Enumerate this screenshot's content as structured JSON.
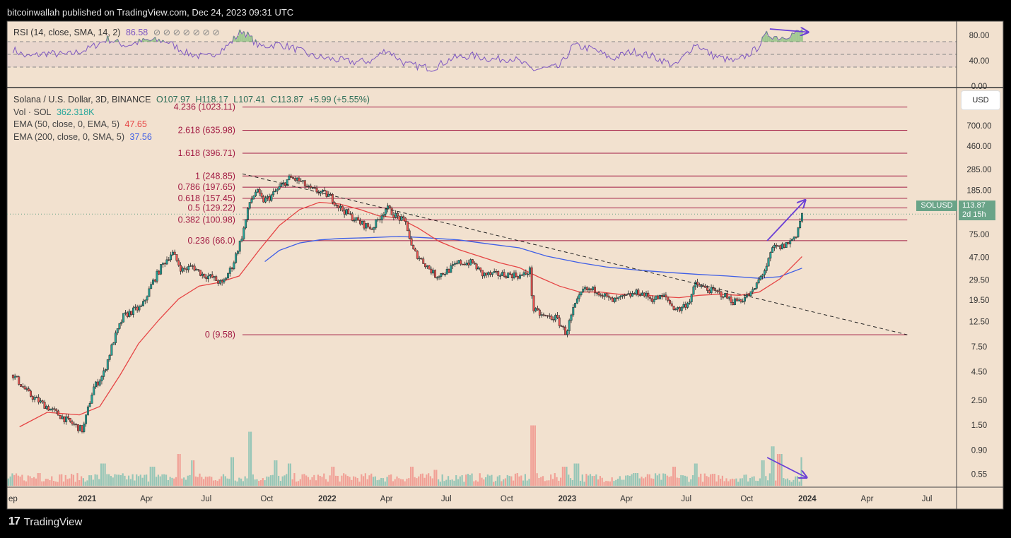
{
  "header": {
    "published": "bitcoinwallah published on TradingView.com, Dec 24, 2023 09:31 UTC"
  },
  "footer": {
    "brand": "TradingView",
    "logo_glyph": "17"
  },
  "rsi_panel": {
    "label": "RSI (14, close, SMA, 14, 2)",
    "value": "86.58",
    "ticks": [
      "80.00",
      "40.00",
      "0.00"
    ]
  },
  "legend": {
    "symbol_line": "Solana / U.S. Dollar, 3D, BINANCE",
    "ohlc": {
      "o": "O107.97",
      "h": "H118.17",
      "l": "L107.41",
      "c": "C113.87",
      "chg": "+5.99 (+5.55%)"
    },
    "vol_label": "Vol · SOL",
    "vol_value": "362.318K",
    "ema50_label": "EMA (50, close, 0, EMA, 5)",
    "ema50_value": "47.65",
    "ema200_label": "EMA (200, close, 0, SMA, 5)",
    "ema200_value": "37.56"
  },
  "currency_button": "USD",
  "price_tag": {
    "symbol": "SOLUSD",
    "price": "113.87",
    "countdown": "2d 15h"
  },
  "colors": {
    "background": "#f2e1cf",
    "up": "#26a69a",
    "down": "#ef5350",
    "fib": "#a31c44",
    "ema50": "#e64545",
    "ema200": "#3e5ee6",
    "rsi": "#7e57c2",
    "annotation_arrow": "#6a3fd6"
  },
  "chart_data": {
    "type": "candlestick",
    "scale": "log",
    "x_ticks": [
      "ep",
      "2021",
      "Apr",
      "Jul",
      "Oct",
      "2022",
      "Apr",
      "Jul",
      "Oct",
      "2023",
      "Apr",
      "Jul",
      "Oct",
      "2024",
      "Apr",
      "Jul"
    ],
    "x_tick_dates": [
      "2020-09-10",
      "2021-01-01",
      "2021-04-01",
      "2021-07-01",
      "2021-10-01",
      "2022-01-01",
      "2022-04-01",
      "2022-07-01",
      "2022-10-01",
      "2023-01-01",
      "2023-04-01",
      "2023-07-01",
      "2023-10-01",
      "2024-01-01",
      "2024-04-01",
      "2024-07-01"
    ],
    "y_ticks": [
      700.0,
      460.0,
      285.0,
      185.0,
      75.0,
      47.0,
      29.5,
      19.5,
      12.5,
      7.5,
      4.5,
      2.5,
      1.5,
      0.9,
      0.55
    ],
    "y_tick_labels": [
      "700.00",
      "460.00",
      "285.00",
      "185.00",
      "75.00",
      "47.00",
      "29.50",
      "19.50",
      "12.50",
      "7.50",
      "4.50",
      "2.50",
      "1.50",
      "0.90",
      "0.55"
    ],
    "fib_levels": [
      {
        "label": "4.236 (1023.11)",
        "value": 1023.11
      },
      {
        "label": "2.618 (635.98)",
        "value": 635.98
      },
      {
        "label": "1.618 (396.71)",
        "value": 396.71
      },
      {
        "label": "1 (248.85)",
        "value": 248.85
      },
      {
        "label": "0.786 (197.65)",
        "value": 197.65
      },
      {
        "label": "0.618 (157.45)",
        "value": 157.45
      },
      {
        "label": "0.5 (129.22)",
        "value": 129.22
      },
      {
        "label": "0.382 (100.98)",
        "value": 100.98
      },
      {
        "label": "0.236 (66.0)",
        "value": 66.0
      },
      {
        "label": "0 (9.58)",
        "value": 9.58
      }
    ],
    "fib_range": [
      "2021-08-25",
      "2024-06-01"
    ],
    "price_path": [
      [
        "2020-09-10",
        4.2
      ],
      [
        "2020-10-05",
        2.8
      ],
      [
        "2020-11-05",
        2.1
      ],
      [
        "2020-12-05",
        1.6
      ],
      [
        "2020-12-25",
        1.35
      ],
      [
        "2021-01-10",
        3.2
      ],
      [
        "2021-01-25",
        4.2
      ],
      [
        "2021-02-10",
        8.5
      ],
      [
        "2021-02-25",
        14
      ],
      [
        "2021-03-10",
        15.5
      ],
      [
        "2021-03-25",
        17
      ],
      [
        "2021-04-10",
        28
      ],
      [
        "2021-04-25",
        40
      ],
      [
        "2021-05-10",
        52
      ],
      [
        "2021-05-25",
        36
      ],
      [
        "2021-06-10",
        39
      ],
      [
        "2021-06-25",
        33
      ],
      [
        "2021-07-10",
        31
      ],
      [
        "2021-07-25",
        27
      ],
      [
        "2021-08-10",
        40
      ],
      [
        "2021-08-25",
        75
      ],
      [
        "2021-09-05",
        145
      ],
      [
        "2021-09-15",
        185
      ],
      [
        "2021-09-25",
        150
      ],
      [
        "2021-10-05",
        160
      ],
      [
        "2021-10-20",
        195
      ],
      [
        "2021-11-05",
        240
      ],
      [
        "2021-11-20",
        225
      ],
      [
        "2021-12-05",
        190
      ],
      [
        "2021-12-20",
        180
      ],
      [
        "2022-01-05",
        165
      ],
      [
        "2022-01-20",
        130
      ],
      [
        "2022-02-05",
        110
      ],
      [
        "2022-02-20",
        95
      ],
      [
        "2022-03-10",
        85
      ],
      [
        "2022-04-01",
        130
      ],
      [
        "2022-04-15",
        110
      ],
      [
        "2022-05-01",
        95
      ],
      [
        "2022-05-10",
        55
      ],
      [
        "2022-05-25",
        44
      ],
      [
        "2022-06-15",
        32
      ],
      [
        "2022-07-01",
        35
      ],
      [
        "2022-07-20",
        42
      ],
      [
        "2022-08-10",
        42
      ],
      [
        "2022-08-25",
        33
      ],
      [
        "2022-09-15",
        33
      ],
      [
        "2022-10-05",
        33
      ],
      [
        "2022-10-25",
        32
      ],
      [
        "2022-11-05",
        36
      ],
      [
        "2022-11-10",
        16
      ],
      [
        "2022-11-25",
        14
      ],
      [
        "2022-12-15",
        13.5
      ],
      [
        "2022-12-30",
        9.9
      ],
      [
        "2023-01-10",
        16
      ],
      [
        "2023-01-25",
        24
      ],
      [
        "2023-02-15",
        24
      ],
      [
        "2023-03-10",
        19
      ],
      [
        "2023-04-01",
        21
      ],
      [
        "2023-04-20",
        23
      ],
      [
        "2023-05-10",
        20
      ],
      [
        "2023-05-30",
        21
      ],
      [
        "2023-06-10",
        17
      ],
      [
        "2023-06-20",
        16
      ],
      [
        "2023-07-05",
        19
      ],
      [
        "2023-07-15",
        27
      ],
      [
        "2023-08-05",
        24
      ],
      [
        "2023-08-25",
        22
      ],
      [
        "2023-09-10",
        19
      ],
      [
        "2023-09-25",
        20
      ],
      [
        "2023-10-10",
        23
      ],
      [
        "2023-10-20",
        30
      ],
      [
        "2023-11-01",
        40
      ],
      [
        "2023-11-10",
        58
      ],
      [
        "2023-11-20",
        57
      ],
      [
        "2023-12-05",
        64
      ],
      [
        "2023-12-15",
        75
      ],
      [
        "2023-12-24",
        113.87
      ]
    ],
    "ema50": [
      [
        "2020-09-20",
        1.45
      ],
      [
        "2020-11-01",
        1.95
      ],
      [
        "2020-12-20",
        1.85
      ],
      [
        "2021-01-20",
        2.2
      ],
      [
        "2021-02-20",
        4.2
      ],
      [
        "2021-03-20",
        8
      ],
      [
        "2021-04-20",
        13
      ],
      [
        "2021-05-20",
        20
      ],
      [
        "2021-06-20",
        26
      ],
      [
        "2021-07-20",
        28
      ],
      [
        "2021-08-20",
        32
      ],
      [
        "2021-09-20",
        55
      ],
      [
        "2021-10-20",
        90
      ],
      [
        "2021-11-20",
        125
      ],
      [
        "2021-12-20",
        145
      ],
      [
        "2022-01-20",
        140
      ],
      [
        "2022-02-20",
        125
      ],
      [
        "2022-03-20",
        110
      ],
      [
        "2022-04-20",
        105
      ],
      [
        "2022-05-20",
        85
      ],
      [
        "2022-06-20",
        65
      ],
      [
        "2022-07-20",
        55
      ],
      [
        "2022-08-20",
        48
      ],
      [
        "2022-09-20",
        42
      ],
      [
        "2022-10-20",
        38
      ],
      [
        "2022-11-20",
        31
      ],
      [
        "2022-12-20",
        26
      ],
      [
        "2023-01-20",
        23
      ],
      [
        "2023-02-20",
        23
      ],
      [
        "2023-03-20",
        22
      ],
      [
        "2023-04-20",
        22
      ],
      [
        "2023-05-20",
        21
      ],
      [
        "2023-06-20",
        20.5
      ],
      [
        "2023-07-20",
        21.5
      ],
      [
        "2023-08-20",
        22
      ],
      [
        "2023-09-20",
        21.5
      ],
      [
        "2023-10-20",
        23
      ],
      [
        "2023-11-20",
        30
      ],
      [
        "2023-12-24",
        47.65
      ]
    ],
    "ema200": [
      [
        "2021-09-28",
        43
      ],
      [
        "2021-10-20",
        54
      ],
      [
        "2021-11-20",
        63
      ],
      [
        "2021-12-20",
        67
      ],
      [
        "2022-01-20",
        69
      ],
      [
        "2022-03-01",
        70
      ],
      [
        "2022-04-20",
        72
      ],
      [
        "2022-06-01",
        70
      ],
      [
        "2022-07-20",
        67
      ],
      [
        "2022-09-01",
        62
      ],
      [
        "2022-10-20",
        57
      ],
      [
        "2022-12-01",
        48
      ],
      [
        "2023-01-20",
        42
      ],
      [
        "2023-03-01",
        38.5
      ],
      [
        "2023-04-20",
        36
      ],
      [
        "2023-06-01",
        34.5
      ],
      [
        "2023-07-20",
        33
      ],
      [
        "2023-09-01",
        32
      ],
      [
        "2023-10-20",
        30.5
      ],
      [
        "2023-11-20",
        31.5
      ],
      [
        "2023-12-24",
        37.56
      ]
    ],
    "trendline": {
      "from": [
        "2021-08-25",
        260
      ],
      "to": [
        "2024-06-01",
        9.58
      ]
    },
    "rsi": [
      [
        "2020-09-10",
        58
      ],
      [
        "2020-10-01",
        46
      ],
      [
        "2020-11-01",
        52
      ],
      [
        "2020-12-01",
        49
      ],
      [
        "2021-01-01",
        58
      ],
      [
        "2021-02-01",
        74
      ],
      [
        "2021-03-01",
        64
      ],
      [
        "2021-04-01",
        72
      ],
      [
        "2021-05-01",
        71
      ],
      [
        "2021-06-01",
        52
      ],
      [
        "2021-07-01",
        45
      ],
      [
        "2021-08-01",
        62
      ],
      [
        "2021-08-25",
        88
      ],
      [
        "2021-09-20",
        62
      ],
      [
        "2021-10-20",
        66
      ],
      [
        "2021-11-10",
        60
      ],
      [
        "2021-12-10",
        47
      ],
      [
        "2022-01-10",
        42
      ],
      [
        "2022-02-10",
        38
      ],
      [
        "2022-03-10",
        40
      ],
      [
        "2022-04-01",
        58
      ],
      [
        "2022-05-01",
        34
      ],
      [
        "2022-06-10",
        28
      ],
      [
        "2022-07-10",
        44
      ],
      [
        "2022-08-10",
        48
      ],
      [
        "2022-09-10",
        42
      ],
      [
        "2022-10-10",
        44
      ],
      [
        "2022-11-10",
        26
      ],
      [
        "2022-12-20",
        30
      ],
      [
        "2023-01-10",
        64
      ],
      [
        "2023-02-10",
        58
      ],
      [
        "2023-03-10",
        43
      ],
      [
        "2023-04-10",
        55
      ],
      [
        "2023-05-10",
        47
      ],
      [
        "2023-06-15",
        32
      ],
      [
        "2023-07-15",
        67
      ],
      [
        "2023-08-10",
        48
      ],
      [
        "2023-09-15",
        38
      ],
      [
        "2023-10-15",
        58
      ],
      [
        "2023-11-01",
        82
      ],
      [
        "2023-11-20",
        76
      ],
      [
        "2023-12-05",
        81
      ],
      [
        "2023-12-24",
        86.58
      ]
    ],
    "rsi_levels": [
      70,
      50,
      30
    ],
    "volume_spikes": [
      [
        "2020-10-20",
        0.2
      ],
      [
        "2021-01-25",
        0.35
      ],
      [
        "2021-04-10",
        0.3
      ],
      [
        "2021-05-20",
        0.5
      ],
      [
        "2021-06-10",
        0.4
      ],
      [
        "2021-08-10",
        0.45
      ],
      [
        "2021-09-05",
        0.85
      ],
      [
        "2021-10-15",
        0.4
      ],
      [
        "2021-11-05",
        0.35
      ],
      [
        "2022-01-10",
        0.3
      ],
      [
        "2022-05-10",
        0.3
      ],
      [
        "2022-06-15",
        0.25
      ],
      [
        "2022-11-10",
        0.95
      ],
      [
        "2022-12-28",
        0.3
      ],
      [
        "2023-01-15",
        0.35
      ],
      [
        "2023-04-15",
        0.2
      ],
      [
        "2023-06-12",
        0.3
      ],
      [
        "2023-07-15",
        0.35
      ],
      [
        "2023-10-25",
        0.4
      ],
      [
        "2023-11-10",
        0.62
      ],
      [
        "2023-11-20",
        0.5
      ],
      [
        "2023-12-24",
        0.45
      ]
    ]
  }
}
